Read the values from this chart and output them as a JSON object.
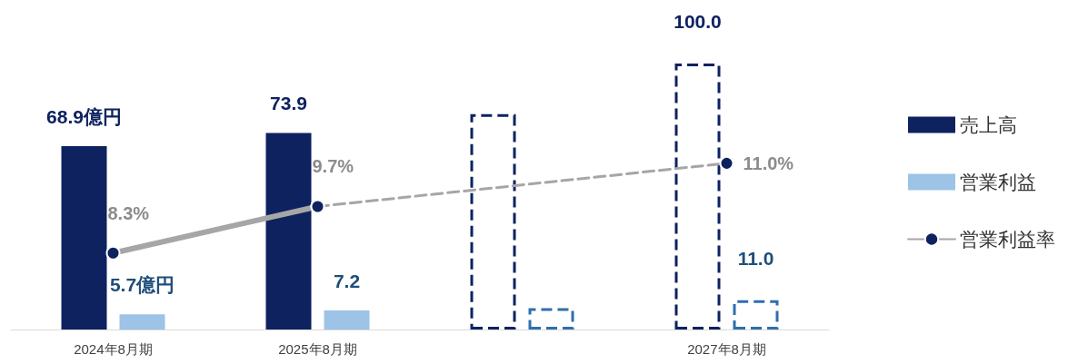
{
  "chart_data": {
    "type": "bar",
    "categories": [
      "2024年8月期",
      "2025年8月期",
      null,
      "2027年8月期"
    ],
    "series": [
      {
        "name": "売上高",
        "color": "#0e2260",
        "values": [
          68.9,
          73.9,
          null,
          null
        ],
        "value_labels": [
          "68.9億円",
          "73.9",
          null,
          null
        ]
      },
      {
        "color": "#0e2260",
        "values": [
          null,
          null,
          81,
          100
        ],
        "value_labels": [
          null,
          null,
          null,
          "100.0"
        ],
        "line_style": "dashed"
      },
      {
        "name": "営業利益",
        "color": "#9dc3e6",
        "values": [
          5.7,
          7.2,
          null,
          null
        ],
        "value_labels": [
          "5.7億円",
          "7.2",
          null,
          null
        ]
      },
      {
        "color": "#2e6faf",
        "values": [
          null,
          null,
          8,
          11.0
        ],
        "value_labels": [
          null,
          null,
          null,
          "11.0"
        ],
        "line_style": "dashed"
      },
      {
        "name": "営業利益率",
        "type": "line",
        "axis": "y2",
        "color": "#a6a6a6",
        "values": [
          8.3,
          9.7,
          null,
          null
        ],
        "value_labels": [
          "8.3%",
          "9.7%",
          null,
          null
        ],
        "line_style": "solid",
        "marker": "circle"
      },
      {
        "type": "line",
        "axis": "y2",
        "color": "#a6a6a6",
        "values": [
          null,
          9.7,
          null,
          11.0
        ],
        "value_labels": [
          null,
          null,
          null,
          "11.0%"
        ],
        "line_style": "dashed",
        "marker": "circle"
      }
    ],
    "ylim": [
      0,
      100
    ],
    "y2lim": [
      6,
      14
    ],
    "tick_labels": "x",
    "legend": "right"
  }
}
